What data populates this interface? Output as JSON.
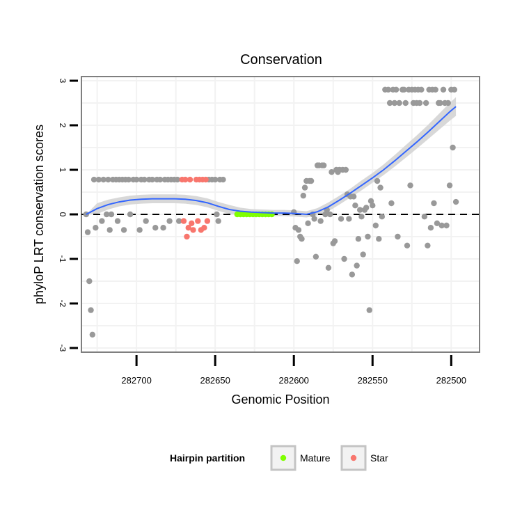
{
  "chart_data": {
    "type": "scatter",
    "title": "Conservation",
    "xlabel": "Genomic Position",
    "ylabel": "phyloP LRT conservation scores",
    "x_reversed": true,
    "xlim": [
      282735,
      282482
    ],
    "ylim": [
      -3,
      3
    ],
    "x_ticks": [
      282700,
      282650,
      282600,
      282550,
      282500
    ],
    "y_ticks": [
      -3,
      -2,
      -1,
      0,
      1,
      2,
      3
    ],
    "reference_line": {
      "y": 0,
      "style": "dashed"
    },
    "legend": {
      "title": "Hairpin partition",
      "placement": "bottom",
      "entries": [
        {
          "label": "Mature",
          "color": "#7fff00"
        },
        {
          "label": "Star",
          "color": "#f8766d"
        }
      ]
    },
    "colors": {
      "other": "#999999",
      "mature": "#7fff00",
      "star": "#f8766d",
      "smooth": "#3366ff",
      "band": "#d6d6d6"
    },
    "series": [
      {
        "name": "Other",
        "points": [
          [
            282732,
            0.0
          ],
          [
            282731,
            -0.4
          ],
          [
            282730,
            -1.5
          ],
          [
            282729,
            -2.15
          ],
          [
            282728,
            -2.7
          ],
          [
            282727,
            0.78
          ],
          [
            282726,
            -0.3
          ],
          [
            282724,
            0.78
          ],
          [
            282722,
            -0.15
          ],
          [
            282721,
            0.78
          ],
          [
            282719,
            0.0
          ],
          [
            282718,
            0.78
          ],
          [
            282717,
            -0.35
          ],
          [
            282716,
            0.0
          ],
          [
            282715,
            0.78
          ],
          [
            282713,
            0.78
          ],
          [
            282712,
            -0.15
          ],
          [
            282711,
            0.78
          ],
          [
            282709,
            0.78
          ],
          [
            282708,
            -0.35
          ],
          [
            282707,
            0.78
          ],
          [
            282705,
            0.78
          ],
          [
            282704,
            0.0
          ],
          [
            282702,
            0.78
          ],
          [
            282700,
            0.78
          ],
          [
            282698,
            -0.35
          ],
          [
            282697,
            0.78
          ],
          [
            282695,
            0.78
          ],
          [
            282694,
            -0.15
          ],
          [
            282692,
            0.78
          ],
          [
            282690,
            0.78
          ],
          [
            282688,
            -0.3
          ],
          [
            282687,
            0.78
          ],
          [
            282685,
            0.78
          ],
          [
            282683,
            -0.3
          ],
          [
            282682,
            0.78
          ],
          [
            282680,
            0.78
          ],
          [
            282679,
            -0.15
          ],
          [
            282678,
            0.78
          ],
          [
            282676,
            0.78
          ],
          [
            282674,
            0.78
          ],
          [
            282673,
            -0.15
          ],
          [
            282654,
            0.78
          ],
          [
            282652,
            0.78
          ],
          [
            282650,
            0.78
          ],
          [
            282649,
            0.0
          ],
          [
            282648,
            -0.15
          ],
          [
            282647,
            0.78
          ],
          [
            282645,
            0.78
          ],
          [
            282600,
            0.05
          ],
          [
            282599,
            -0.3
          ],
          [
            282598,
            -1.05
          ],
          [
            282597,
            -0.35
          ],
          [
            282596,
            -0.5
          ],
          [
            282595,
            -0.55
          ],
          [
            282594,
            0.42
          ],
          [
            282593,
            0.6
          ],
          [
            282592,
            0.75
          ],
          [
            282591,
            -0.2
          ],
          [
            282590,
            0.75
          ],
          [
            282589,
            0.75
          ],
          [
            282588,
            0.0
          ],
          [
            282587,
            -0.1
          ],
          [
            282586,
            -0.95
          ],
          [
            282585,
            1.1
          ],
          [
            282584,
            1.1
          ],
          [
            282583,
            -0.15
          ],
          [
            282582,
            1.1
          ],
          [
            282581,
            1.1
          ],
          [
            282580,
            0.0
          ],
          [
            282579,
            0.1
          ],
          [
            282578,
            -1.2
          ],
          [
            282577,
            0.0
          ],
          [
            282576,
            0.95
          ],
          [
            282575,
            -0.65
          ],
          [
            282574,
            -0.6
          ],
          [
            282573,
            1.0
          ],
          [
            282572,
            0.95
          ],
          [
            282571,
            1.0
          ],
          [
            282570,
            -0.1
          ],
          [
            282569,
            1.0
          ],
          [
            282568,
            -1.0
          ],
          [
            282567,
            1.0
          ],
          [
            282566,
            0.45
          ],
          [
            282565,
            -0.1
          ],
          [
            282564,
            0.4
          ],
          [
            282563,
            -1.35
          ],
          [
            282562,
            0.4
          ],
          [
            282561,
            0.2
          ],
          [
            282560,
            -1.15
          ],
          [
            282559,
            -0.55
          ],
          [
            282558,
            0.1
          ],
          [
            282557,
            -0.05
          ],
          [
            282556,
            -0.9
          ],
          [
            282555,
            0.1
          ],
          [
            282554,
            0.15
          ],
          [
            282553,
            -0.5
          ],
          [
            282552,
            -2.15
          ],
          [
            282551,
            0.3
          ],
          [
            282550,
            0.2
          ],
          [
            282548,
            -0.25
          ],
          [
            282547,
            0.75
          ],
          [
            282546,
            -0.55
          ],
          [
            282545,
            0.6
          ],
          [
            282544,
            -0.05
          ],
          [
            282542,
            2.8
          ],
          [
            282540,
            2.8
          ],
          [
            282539,
            2.5
          ],
          [
            282538,
            0.25
          ],
          [
            282537,
            2.8
          ],
          [
            282536,
            2.5
          ],
          [
            282535,
            2.8
          ],
          [
            282534,
            -0.5
          ],
          [
            282533,
            2.5
          ],
          [
            282531,
            2.8
          ],
          [
            282530,
            2.8
          ],
          [
            282529,
            2.5
          ],
          [
            282528,
            -0.7
          ],
          [
            282527,
            2.8
          ],
          [
            282526,
            0.65
          ],
          [
            282525,
            2.8
          ],
          [
            282524,
            2.5
          ],
          [
            282523,
            2.8
          ],
          [
            282522,
            2.5
          ],
          [
            282521,
            2.8
          ],
          [
            282520,
            2.5
          ],
          [
            282519,
            2.8
          ],
          [
            282517,
            -0.05
          ],
          [
            282516,
            2.5
          ],
          [
            282515,
            -0.7
          ],
          [
            282514,
            2.8
          ],
          [
            282513,
            -0.3
          ],
          [
            282512,
            2.8
          ],
          [
            282511,
            0.25
          ],
          [
            282510,
            2.8
          ],
          [
            282509,
            -0.2
          ],
          [
            282508,
            2.5
          ],
          [
            282507,
            2.5
          ],
          [
            282506,
            -0.25
          ],
          [
            282505,
            2.8
          ],
          [
            282504,
            2.5
          ],
          [
            282503,
            -0.25
          ],
          [
            282502,
            2.5
          ],
          [
            282501,
            0.65
          ],
          [
            282500,
            2.8
          ],
          [
            282499,
            1.5
          ],
          [
            282498,
            2.8
          ],
          [
            282497,
            0.28
          ]
        ]
      },
      {
        "name": "Mature",
        "points": [
          [
            282636,
            0.0
          ],
          [
            282634,
            0.0
          ],
          [
            282632,
            0.0
          ],
          [
            282630,
            0.0
          ],
          [
            282628,
            0.0
          ],
          [
            282626,
            0.0
          ],
          [
            282624,
            0.0
          ],
          [
            282622,
            0.0
          ],
          [
            282620,
            0.0
          ],
          [
            282618,
            0.0
          ],
          [
            282616,
            0.0
          ],
          [
            282614,
            0.0
          ]
        ]
      },
      {
        "name": "Star",
        "points": [
          [
            282671,
            0.78
          ],
          [
            282670,
            -0.15
          ],
          [
            282669,
            0.78
          ],
          [
            282668,
            -0.5
          ],
          [
            282667,
            -0.3
          ],
          [
            282666,
            0.78
          ],
          [
            282665,
            -0.2
          ],
          [
            282664,
            -0.35
          ],
          [
            282662,
            0.78
          ],
          [
            282661,
            -0.15
          ],
          [
            282660,
            0.78
          ],
          [
            282659,
            -0.35
          ],
          [
            282658,
            0.78
          ],
          [
            282657,
            -0.3
          ],
          [
            282656,
            0.78
          ],
          [
            282655,
            -0.15
          ]
        ]
      }
    ],
    "smooth_line": {
      "x": [
        282732,
        282725,
        282718,
        282711,
        282704,
        282697,
        282690,
        282683,
        282676,
        282669,
        282662,
        282655,
        282648,
        282641,
        282634,
        282627,
        282620,
        282613,
        282606,
        282599,
        282592,
        282585,
        282578,
        282571,
        282564,
        282557,
        282550,
        282543,
        282536,
        282529,
        282522,
        282515,
        282508,
        282501,
        282497
      ],
      "y": [
        0.0,
        0.13,
        0.22,
        0.28,
        0.32,
        0.34,
        0.35,
        0.35,
        0.35,
        0.34,
        0.31,
        0.26,
        0.18,
        0.11,
        0.07,
        0.05,
        0.04,
        0.03,
        0.03,
        0.02,
        0.0,
        0.06,
        0.17,
        0.32,
        0.48,
        0.65,
        0.82,
        1.0,
        1.2,
        1.41,
        1.62,
        1.84,
        2.07,
        2.3,
        2.42
      ],
      "band_halfwidth": [
        0.0,
        0.12,
        0.11,
        0.1,
        0.1,
        0.1,
        0.1,
        0.1,
        0.1,
        0.1,
        0.1,
        0.1,
        0.1,
        0.1,
        0.08,
        0.07,
        0.07,
        0.07,
        0.07,
        0.07,
        0.07,
        0.08,
        0.1,
        0.1,
        0.1,
        0.11,
        0.11,
        0.12,
        0.13,
        0.14,
        0.15,
        0.16,
        0.18,
        0.2,
        0.21
      ]
    }
  }
}
